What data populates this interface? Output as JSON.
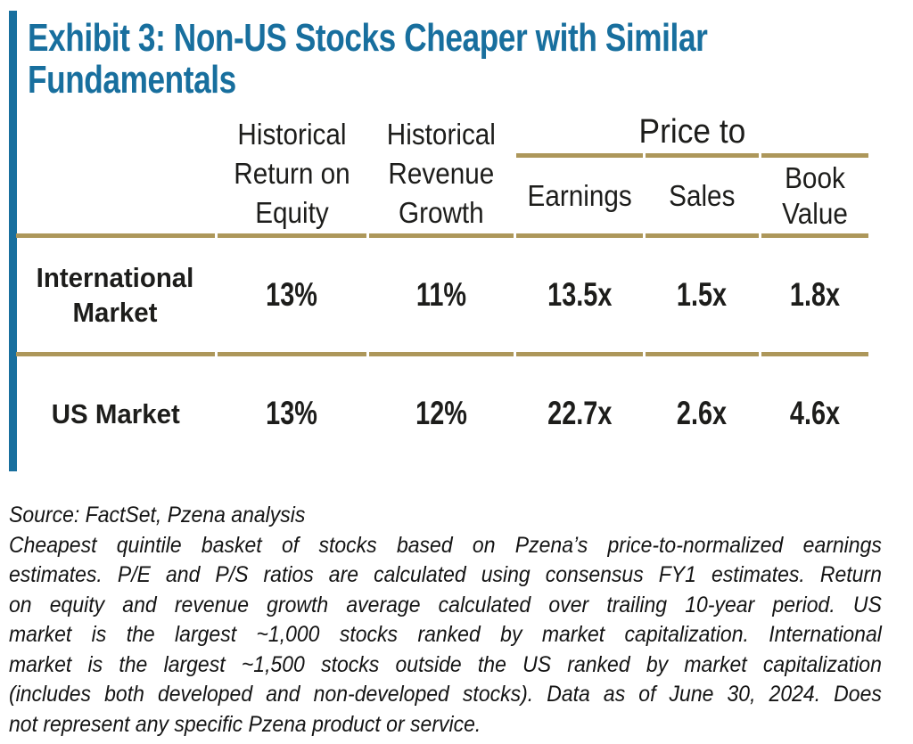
{
  "exhibit": {
    "title_line1": "Exhibit 3: Non-US Stocks Cheaper with Similar",
    "title_line2": "Fundamentals"
  },
  "table": {
    "headers": {
      "roe": [
        "Historical",
        "Return on",
        "Equity"
      ],
      "revenue_growth": [
        "Historical",
        "Revenue",
        "Growth"
      ],
      "price_to": "Price to",
      "earnings": "Earnings",
      "sales": "Sales",
      "book_value": [
        "Book",
        "Value"
      ]
    },
    "rows": [
      {
        "label_lines": [
          "International",
          "Market"
        ],
        "roe": "13%",
        "revenue_growth": "11%",
        "price_to_earnings": "13.5x",
        "price_to_sales": "1.5x",
        "price_to_book": "1.8x"
      },
      {
        "label_lines": [
          "US Market"
        ],
        "roe": "13%",
        "revenue_growth": "12%",
        "price_to_earnings": "22.7x",
        "price_to_sales": "2.6x",
        "price_to_book": "4.6x"
      }
    ]
  },
  "chart_data": {
    "type": "table",
    "columns": [
      "",
      "Historical Return on Equity",
      "Historical Revenue Growth",
      "Price to Earnings",
      "Price to Sales",
      "Price to Book Value"
    ],
    "rows": [
      [
        "International Market",
        "13%",
        "11%",
        "13.5x",
        "1.5x",
        "1.8x"
      ],
      [
        "US Market",
        "13%",
        "12%",
        "22.7x",
        "2.6x",
        "4.6x"
      ]
    ]
  },
  "footnotes": {
    "source": "Source: FactSet, Pzena analysis",
    "para_lines": [
      "Cheapest quintile basket of stocks based on Pzena’s price-to-normalized earnings",
      "estimates.  P/E and P/S ratios are calculated using consensus FY1 estimates. Return",
      "on equity and revenue growth average calculated over trailing 10-year period.  US",
      "market is the largest ~1,000 stocks ranked by market capitalization. International",
      "market is the largest ~1,500 stocks outside the US ranked by market capitalization",
      "(includes both developed and non-developed stocks). Data as of June 30, 2024. Does",
      "not represent any specific Pzena product or service."
    ]
  },
  "colors": {
    "accent_blue": "#186f9e",
    "gold": "#ad975a",
    "text": "#1d1d1b"
  }
}
